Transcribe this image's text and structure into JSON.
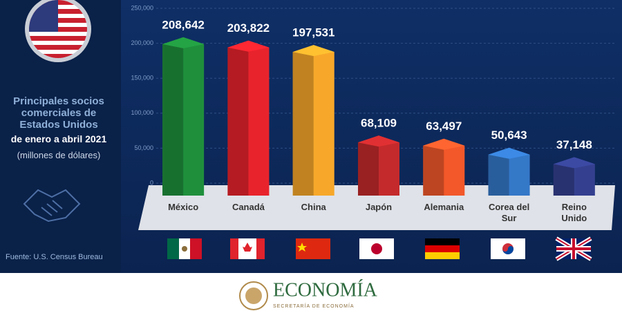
{
  "chart_data": {
    "type": "bar",
    "title": "Principales socios comerciales de Estados Unidos",
    "subtitle": "de enero a abril 2021",
    "unit_note": "(millones de dólares)",
    "source": "Fuente: U.S. Census Bureau",
    "categories": [
      "México",
      "Canadá",
      "China",
      "Japón",
      "Alemania",
      "Corea del Sur",
      "Reino Unido"
    ],
    "values": [
      208642,
      203822,
      197531,
      68109,
      63497,
      50643,
      37148
    ],
    "value_labels": [
      "208,642",
      "203,822",
      "197,531",
      "68,109",
      "63,497",
      "50,643",
      "37,148"
    ],
    "colors": [
      "#1f8f3c",
      "#e8232c",
      "#f7a82a",
      "#c42a2c",
      "#f2582a",
      "#3478c8",
      "#34408f"
    ],
    "ylim": [
      0,
      250000
    ],
    "yticks": [
      0,
      {
        "value": 50000,
        "label": "50,000"
      },
      {
        "value": 100000,
        "label": "100,000"
      },
      {
        "value": 150000,
        "label": "150,000"
      },
      {
        "value": 200000,
        "label": "200,000"
      },
      {
        "value": 250000,
        "label": "250,000"
      }
    ],
    "grid": true
  },
  "footer": {
    "brand": "ECONOMÍA",
    "agency": "SECRETARÍA DE ECONOMÍA"
  }
}
